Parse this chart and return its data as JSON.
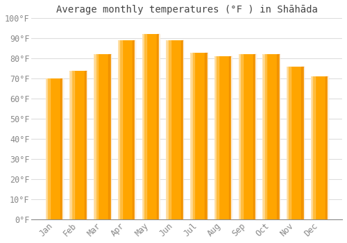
{
  "title": "Average monthly temperatures (°F ) in Shāhāda",
  "months": [
    "Jan",
    "Feb",
    "Mar",
    "Apr",
    "May",
    "Jun",
    "Jul",
    "Aug",
    "Sep",
    "Oct",
    "Nov",
    "Dec"
  ],
  "values": [
    70,
    74,
    82,
    89,
    92,
    89,
    83,
    81,
    82,
    82,
    76,
    71
  ],
  "bar_color_main": "#FFA500",
  "bar_color_left": "#FFD580",
  "bar_color_right": "#FF8C00",
  "background_color": "#FFFFFF",
  "grid_color": "#DDDDDD",
  "tick_color": "#888888",
  "title_color": "#444444",
  "ylim": [
    0,
    100
  ],
  "yticks": [
    0,
    10,
    20,
    30,
    40,
    50,
    60,
    70,
    80,
    90,
    100
  ],
  "ytick_labels": [
    "0°F",
    "10°F",
    "20°F",
    "30°F",
    "40°F",
    "50°F",
    "60°F",
    "70°F",
    "80°F",
    "90°F",
    "100°F"
  ],
  "title_fontsize": 10,
  "tick_fontsize": 8.5,
  "bar_width": 0.72
}
